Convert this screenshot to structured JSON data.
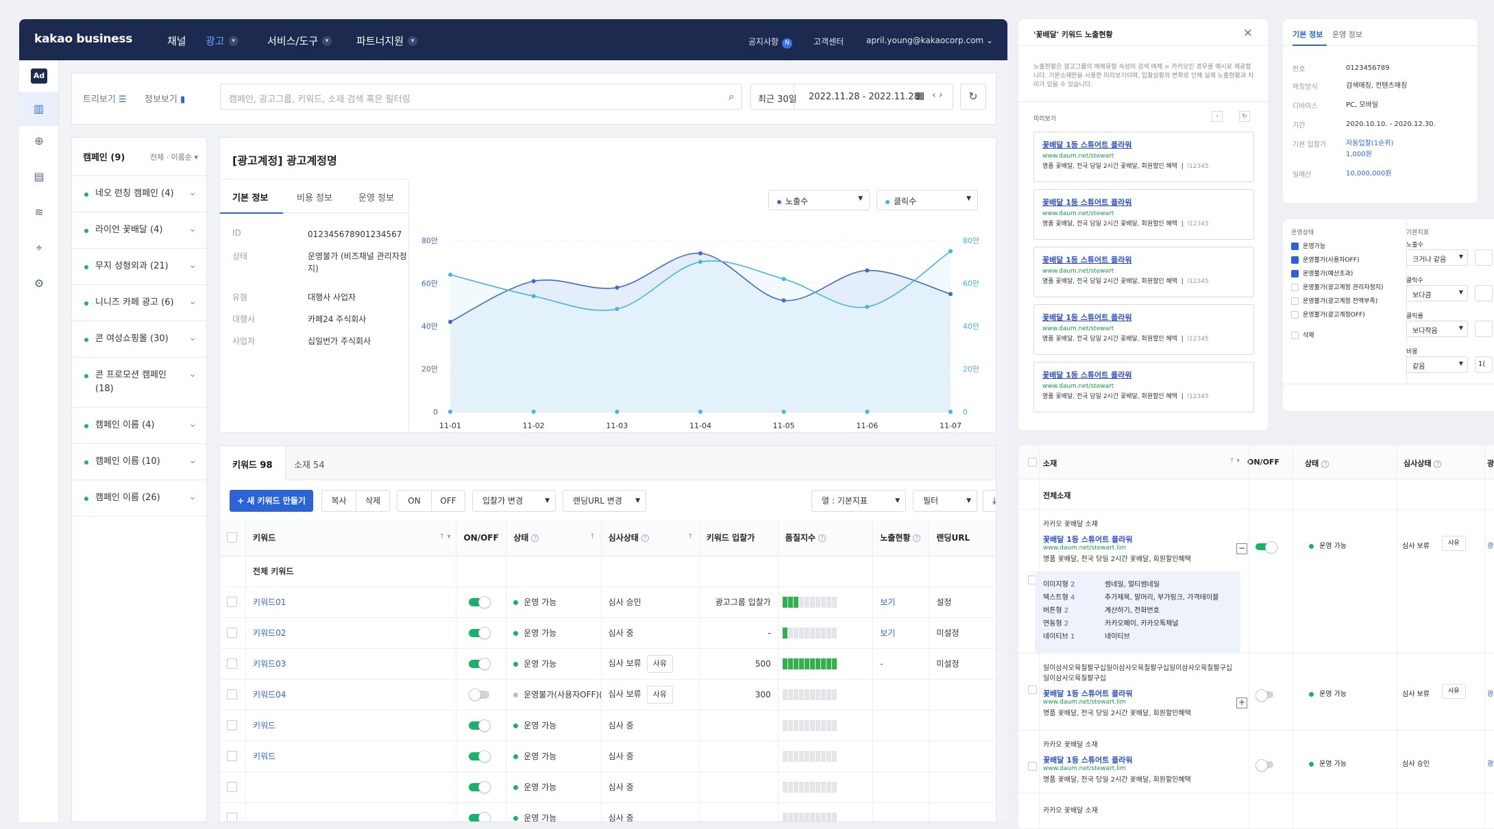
{
  "gnb": {
    "logo": "kakao business",
    "menus": [
      "채널",
      "광고",
      "서비스/도구",
      "파트너지원"
    ],
    "notice": "공지사항",
    "notice_badge": "N",
    "support": "고객센터",
    "account": "april.young@kakaocorp.com"
  },
  "lnb": {
    "ad": "Ad"
  },
  "toolbar": {
    "tree_view": "트리보기",
    "info_view": "정보보기",
    "search_placeholder": "캠페인, 광고그룹, 키워드, 소재 검색 혹은 필터링",
    "period": "최근 30일",
    "date_range": "2022.11.28 - 2022.11.28"
  },
  "campaigns": {
    "header": "캠페인 (9)",
    "sort": "전체 · 이름순",
    "items": [
      "네오 런칭 캠페인 (4)",
      "라이언 꽃배달 (4)",
      "무지 성형외과 (21)",
      "니니즈 카페 광고 (6)",
      "콘 여성쇼핑몰 (30)",
      "콘 프로모션 캠페인 (18)",
      "캠페인 이름 (4)",
      "캠페인 이름 (10)",
      "캠페인 이름 (26)"
    ]
  },
  "account_info": {
    "title": "[광고계정] 광고계정명",
    "tabs": [
      "기본 정보",
      "비용 정보",
      "운영 정보"
    ],
    "fields": [
      {
        "k": "ID",
        "v": "012345678901234567"
      },
      {
        "k": "상태",
        "v": "운영불가 (비즈채널 관리자정지)"
      },
      {
        "k": "유형",
        "v": "대행사 사업자"
      },
      {
        "k": "대행사",
        "v": "카페24 주식회사"
      },
      {
        "k": "사업자",
        "v": "십일번가 주식회사"
      }
    ],
    "metric_left": "노출수",
    "metric_right": "클릭수"
  },
  "chart_data": {
    "type": "area",
    "x": [
      "11-01",
      "11-02",
      "11-03",
      "11-04",
      "11-05",
      "11-06",
      "11-07"
    ],
    "y_ticks_left": [
      "0",
      "20만",
      "40만",
      "60만",
      "80만"
    ],
    "y_ticks_right": [
      "0",
      "20만",
      "40만",
      "60만",
      "80만"
    ],
    "ylim": [
      0,
      80
    ],
    "series": [
      {
        "name": "노출수",
        "values": [
          42,
          61,
          58,
          74,
          52,
          66,
          55
        ],
        "color": "#3e68c9"
      },
      {
        "name": "클릭수",
        "values": [
          64,
          54,
          48,
          70,
          62,
          49,
          75
        ],
        "color": "#45b4e0"
      }
    ],
    "baseline_markers": [
      0,
      0,
      0,
      0,
      0,
      0,
      0
    ]
  },
  "keywords": {
    "tabs": [
      "키워드 98",
      "소재 54"
    ],
    "new_button": "+ 새 키워드 만들기",
    "copy": "복사",
    "delete": "삭제",
    "on": "ON",
    "off": "OFF",
    "bid_change": "입찰가 변경",
    "landing_change": "랜딩URL 변경",
    "columns_select": "열 : 기본지표",
    "filter": "필터",
    "headers": [
      "키워드",
      "ON/OFF",
      "상태",
      "심사상태",
      "키워드 입찰가",
      "품질지수",
      "노출현황",
      "랜딩URL"
    ],
    "all_row": "전체 키워드",
    "reason": "사유",
    "rows": [
      {
        "kw": "키워드01",
        "on": true,
        "status": "운영 가능",
        "active": true,
        "review": "심사 승인",
        "reason": false,
        "bid": "광고그룹 입찰가",
        "q": 3,
        "exp": "보기",
        "url": "설정"
      },
      {
        "kw": "키워드02",
        "on": true,
        "status": "운영 가능",
        "active": true,
        "review": "심사 중",
        "reason": false,
        "bid": "-",
        "q": 1,
        "exp": "보기",
        "url": "미설정"
      },
      {
        "kw": "키워드03",
        "on": true,
        "status": "운영 가능",
        "active": true,
        "review": "심사 보류",
        "reason": true,
        "bid": "500",
        "q": 10,
        "exp": "-",
        "url": "미설정"
      },
      {
        "kw": "키워드04",
        "on": false,
        "status": "운영불가(사용자OFF)(2)",
        "active": false,
        "review": "심사 보류",
        "reason": true,
        "bid": "300",
        "q": 0,
        "exp": "",
        "url": ""
      },
      {
        "kw": "키워드",
        "on": true,
        "status": "운영 가능",
        "active": true,
        "review": "심사 중",
        "reason": false,
        "bid": "",
        "q": 0,
        "exp": "",
        "url": ""
      },
      {
        "kw": "키워드",
        "on": true,
        "status": "운영 가능",
        "active": true,
        "review": "심사 중",
        "reason": false,
        "bid": "",
        "q": 0,
        "exp": "",
        "url": ""
      },
      {
        "kw": "",
        "on": true,
        "status": "운영 가능",
        "active": true,
        "review": "심사 중",
        "reason": false,
        "bid": "",
        "q": 0,
        "exp": "",
        "url": ""
      },
      {
        "kw": "",
        "on": true,
        "status": "운영 가능",
        "active": true,
        "review": "심사 중",
        "reason": false,
        "bid": "",
        "q": 0,
        "exp": "",
        "url": ""
      }
    ]
  },
  "preview_panel": {
    "title": "'꽃배달' 키워드 노출현황",
    "desc": "노출현황은 광고그룹의 매체유형 속성이 검색 매체 > 카카오인 경우를 예시로 제공합니다. 기본소재만을 사용한 미리보기이며, 입찰상황의 변화로 인해 실제 노출현황과 차이가 있을 수 있습니다.",
    "preview_label": "미리보기",
    "ad_title": "꽃배달 1등 스튜어트 플라워",
    "ad_url": "www.daum.net/stewart",
    "ad_desc": "명품 꽃배달, 전국 당일 2시간 꽃배달, 회원할인 혜택",
    "ad_id": "l12345"
  },
  "detail_panel": {
    "tabs": [
      "기본 정보",
      "운영 정보"
    ],
    "fields": [
      {
        "k": "번호",
        "v": "0123456789",
        "link": false
      },
      {
        "k": "매칭방식",
        "v": "검색매칭, 컨텐츠매칭",
        "link": false
      },
      {
        "k": "디바이스",
        "v": "PC, 모바일",
        "link": false
      },
      {
        "k": "기간",
        "v": "2020.10.10. - 2020.12.30.",
        "link": false
      },
      {
        "k": "기본 입찰가",
        "v": "자동입찰(1순위)",
        "v2": "1,000원",
        "link": true
      },
      {
        "k": "일예산",
        "v": "10,000,000원",
        "link": true
      }
    ]
  },
  "filter_panel": {
    "status_label": "운영상태",
    "statuses": [
      {
        "label": "운영가능",
        "checked": true
      },
      {
        "label": "운영불가(사용자OFF)",
        "checked": true
      },
      {
        "label": "운영불가(예산초과)",
        "checked": true
      },
      {
        "label": "운영불가(광고계정 관리자정지)",
        "checked": false
      },
      {
        "label": "운영불가(광고계정 잔액부족)",
        "checked": false
      },
      {
        "label": "운영불가(광고계정OFF)",
        "checked": false
      }
    ],
    "delete_label": "삭제",
    "metric_label": "기본지표",
    "metrics": [
      {
        "name": "노출수",
        "op": "크거나 같음"
      },
      {
        "name": "클릭수",
        "op": "보다큼"
      },
      {
        "name": "클릭률",
        "op": "보다작음"
      },
      {
        "name": "비용",
        "op": "같음"
      }
    ],
    "last_value": "1("
  },
  "material_table": {
    "headers": [
      "소재",
      "ON/OFF",
      "상태",
      "심사상태",
      "광"
    ],
    "all_row": "전체소재",
    "rows": [
      {
        "name": "카카오 꽃배달 소재",
        "title": "꽃배달 1등 스튜어트 플라워",
        "url": "www.daum.net/stewart.lim",
        "desc": "명품 꽃배달, 전국 당일 2시간 꽃배달, 회원할인혜택",
        "expanded": true,
        "on": true,
        "status": "운영 가능",
        "review": "심사 보류",
        "reason": true,
        "details": [
          {
            "k": "이미지형",
            "n": "2",
            "v": "썸네일, 멀티썸네일"
          },
          {
            "k": "텍스트형",
            "n": "4",
            "v": "추가제목, 말머리, 부가링크, 가격테이블"
          },
          {
            "k": "버튼형",
            "n": "2",
            "v": "계산하기, 전화번호"
          },
          {
            "k": "연동형",
            "n": "2",
            "v": "카카오페이, 카카오톡채널"
          },
          {
            "k": "네이티브",
            "n": "1",
            "v": "네이티브"
          }
        ]
      },
      {
        "name": "일이삼사오육칠팔구십일이삼사오육칠팔구십일이삼사오육칠팔구십일이삼사오육칠팔구십",
        "title": "꽃배달 1등 스튜어트 플라워",
        "url": "www.daum.net/stewart.lim",
        "desc": "명품 꽃배달, 전국 당일 2시간 꽃배달, 회원할인혜택",
        "expanded": false,
        "on": false,
        "status": "운영 가능",
        "review": "심사 보류",
        "reason": true
      },
      {
        "name": "카카오 꽃배달 소재",
        "title": "꽃배달 1등 스튜어트 플라워",
        "url": "www.daum.net/stewart.lim",
        "desc": "명품 꽃배달, 전국 당일 2시간 꽃배달, 회원할인혜택",
        "expanded": false,
        "on": false,
        "status": "운영 가능",
        "review": "심사 승인",
        "reason": false
      },
      {
        "name": "카카오 꽃배달 소재"
      }
    ]
  }
}
